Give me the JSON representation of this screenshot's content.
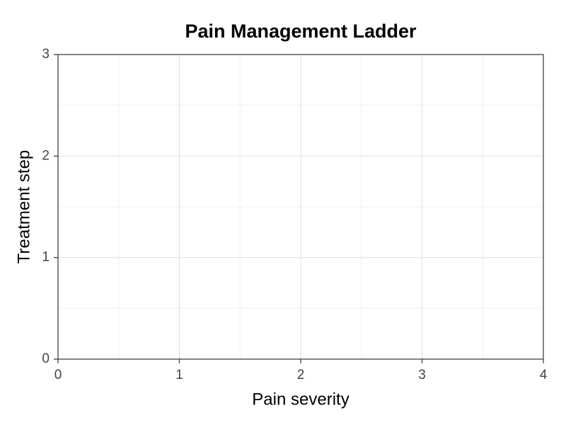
{
  "chart_data": {
    "type": "line",
    "title": "Pain Management Ladder",
    "xlabel": "Pain severity",
    "ylabel": "Treatment step",
    "series": [],
    "xlim": [
      0,
      4
    ],
    "xticks": [
      0,
      1,
      2,
      3,
      4
    ],
    "ylim": [
      0,
      3
    ],
    "yticks": [
      0,
      1,
      2,
      3
    ],
    "grid": true,
    "minor_grid": true
  }
}
